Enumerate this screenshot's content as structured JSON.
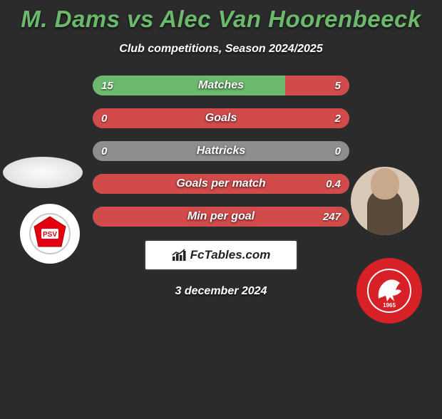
{
  "title_text": "M. Dams vs Alec Van Hoorenbeeck",
  "title_color": "#6bb96b",
  "subtitle": "Club competitions, Season 2024/2025",
  "left_color": "#6cb86c",
  "right_color": "#d24b4b",
  "track_color": "#8e8e8e",
  "neutral_color": "#8e8e8e",
  "stats": [
    {
      "label": "Matches",
      "left_val": "15",
      "right_val": "5",
      "left_pct": 75,
      "right_pct": 25,
      "mode": "split"
    },
    {
      "label": "Goals",
      "left_val": "0",
      "right_val": "2",
      "left_pct": 0,
      "right_pct": 100,
      "mode": "split"
    },
    {
      "label": "Hattricks",
      "left_val": "0",
      "right_val": "0",
      "left_pct": 0,
      "right_pct": 0,
      "mode": "neutral"
    },
    {
      "label": "Goals per match",
      "left_val": "",
      "right_val": "0.4",
      "left_pct": 0,
      "right_pct": 100,
      "mode": "right-only"
    },
    {
      "label": "Min per goal",
      "left_val": "",
      "right_val": "247",
      "left_pct": 0,
      "right_pct": 100,
      "mode": "right-only"
    }
  ],
  "footer_brand": "FcTables.com",
  "footer_date": "3 december 2024",
  "club1_label": "PSV",
  "club2_year": "1965"
}
